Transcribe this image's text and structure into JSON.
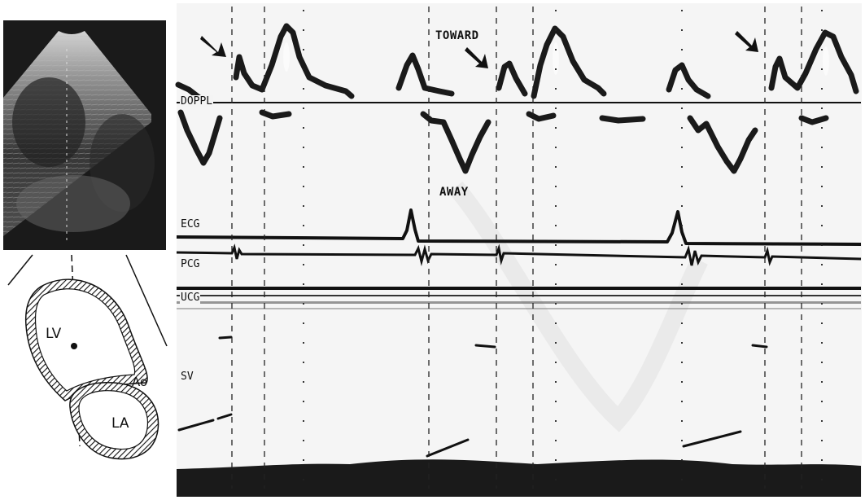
{
  "panel_labels": {
    "toward": "TOWARD",
    "away": "AWAY",
    "doppl": "DOPPL",
    "ecg": "ECG",
    "pcg": "PCG",
    "ucg": "UCG",
    "sv": "SV"
  },
  "diagram_labels": {
    "lv": "LV",
    "la": "LA",
    "ao": "Ao"
  },
  "icons": {
    "arrow": "arrow-down-right-icon"
  }
}
